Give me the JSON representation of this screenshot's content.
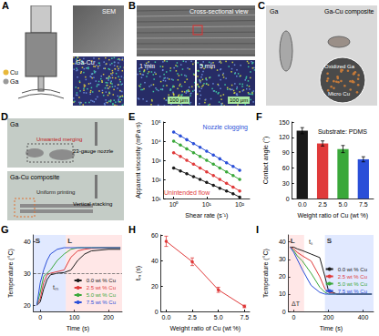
{
  "photo_panels": [
    {
      "letter": "A",
      "legend": [
        {
          "label": "Cu",
          "color": "#e8b83a"
        },
        {
          "label": "Ga",
          "color": "#9a9a9a"
        }
      ],
      "sem_label": "SEM",
      "eds_label": "Ga-Cu"
    },
    {
      "letter": "B",
      "main_label": "Cross-sectional view",
      "insets": [
        {
          "label": "1 min",
          "scale_bar": "100 μm"
        },
        {
          "label": "5 min",
          "scale_bar": "100 μm"
        }
      ]
    },
    {
      "letter": "C",
      "left_label": "Ga",
      "right_label": "Ga-Cu composite",
      "inset_labels": [
        "Oxidized Ga",
        "Micro Cu"
      ]
    },
    {
      "letter": "D",
      "rows": [
        {
          "label": "Ga",
          "notes": [
            "23-gauge nozzle",
            "Unwanted merging"
          ]
        },
        {
          "label": "Ga-Cu composite",
          "notes": [
            "Vertical stacking",
            "Uniform printing"
          ]
        }
      ]
    }
  ],
  "chart_data": [
    {
      "panel": "E",
      "type": "line",
      "log": true,
      "x_label": "Shear rate (s⁻¹)",
      "y_label": "Apparent viscosity (mPa·s)",
      "annotations": [
        "Nozzle clogging",
        "Unintended flow"
      ],
      "xlim": [
        0.5,
        200
      ],
      "xticks": [
        {
          "value": 1,
          "label": "10⁰"
        },
        {
          "value": 10,
          "label": "10¹"
        },
        {
          "value": 100,
          "label": "10²"
        }
      ],
      "ylim": [
        10,
        100000
      ],
      "yticks": [
        {
          "value": 10,
          "label": "10¹"
        },
        {
          "value": 100,
          "label": "10²"
        },
        {
          "value": 1000,
          "label": "10³"
        },
        {
          "value": 10000,
          "label": "10⁴"
        },
        {
          "value": 100000,
          "label": "10⁵"
        }
      ],
      "x": [
        1,
        1.6,
        2.5,
        4,
        6.3,
        10,
        16,
        25,
        40,
        63,
        100
      ],
      "series": [
        {
          "color": "#1a1a1a",
          "marker": "circle",
          "line_style": "solid",
          "values": [
            400,
            280,
            200,
            140,
            100,
            70,
            50,
            35,
            25,
            18,
            12
          ]
        },
        {
          "color": "#e03a3a",
          "marker": "circle",
          "line_style": "solid",
          "values": [
            2500,
            1600,
            1000,
            630,
            400,
            250,
            160,
            100,
            63,
            40,
            25
          ]
        },
        {
          "color": "#3aa83a",
          "marker": "circle",
          "line_style": "solid",
          "values": [
            10000,
            6300,
            4000,
            2500,
            1600,
            1000,
            630,
            400,
            250,
            160,
            100
          ]
        },
        {
          "color": "#2a4fd8",
          "marker": "circle",
          "line_style": "solid",
          "values": [
            30000,
            19000,
            12000,
            7500,
            4800,
            3000,
            1900,
            1200,
            750,
            480,
            300
          ]
        }
      ],
      "grid": false
    },
    {
      "panel": "F",
      "type": "bar",
      "title": "Substrate: PDMS",
      "x_label": "Weight ratio of Cu (wt %)",
      "y_label": "Contact angle (°)",
      "categories": [
        "0.0",
        "2.5",
        "5.0",
        "7.5"
      ],
      "values": [
        133,
        108,
        97,
        77
      ],
      "errors": [
        6,
        5,
        7,
        5
      ],
      "colors": [
        "#1a1a1a",
        "#e03a3a",
        "#3aa83a",
        "#2a4fd8"
      ],
      "ylim": [
        0,
        150
      ],
      "yticks": [
        0,
        30,
        60,
        90,
        120,
        150
      ],
      "grid": false
    },
    {
      "panel": "G",
      "type": "line",
      "x_label": "Time (s)",
      "y_label": "Temperature (°C)",
      "annotations": [
        "tₘ"
      ],
      "regions": [
        {
          "label": "S",
          "from": -20,
          "to": 75,
          "color": "#9ab6ff"
        },
        {
          "label": "L",
          "from": 75,
          "to": 240,
          "color": "#ffb0b0"
        }
      ],
      "reference_line": 30,
      "xlim": [
        -20,
        240
      ],
      "xticks": [
        0,
        100,
        200
      ],
      "ylim": [
        18,
        42
      ],
      "yticks": [
        20,
        30,
        40
      ],
      "x": [
        -10,
        0,
        10,
        20,
        30,
        50,
        70,
        90,
        110,
        130,
        150,
        200,
        235
      ],
      "series": [
        {
          "name": "0.0 wt % Cu",
          "color": "#1a1a1a",
          "line_style": "solid",
          "values": [
            20,
            21,
            25,
            28,
            29.5,
            30,
            30.2,
            31,
            34,
            36,
            37,
            37.5,
            37.5
          ]
        },
        {
          "name": "2.5 wt % Cu",
          "color": "#e03a3a",
          "line_style": "solid",
          "values": [
            20,
            22,
            27,
            29.5,
            30,
            30.5,
            31,
            35,
            37,
            37.5,
            37.8,
            38,
            38
          ]
        },
        {
          "name": "5.0 wt % Cu",
          "color": "#3aa83a",
          "line_style": "solid",
          "values": [
            20,
            24,
            29,
            30,
            31,
            34,
            36,
            37.5,
            38,
            38,
            38,
            38,
            38
          ]
        },
        {
          "name": "7.5 wt % Cu",
          "color": "#2a4fd8",
          "line_style": "solid",
          "values": [
            20,
            27,
            31,
            34,
            36,
            37.5,
            38,
            38,
            38,
            38,
            38,
            38,
            38
          ]
        }
      ],
      "legend": "lower right",
      "grid": false
    },
    {
      "panel": "H",
      "type": "line",
      "x_label": "Weight ratio of Cu (wt %)",
      "y_label": "tₘ (s)",
      "xlim": [
        -0.5,
        8
      ],
      "xticks": [
        {
          "value": 0,
          "label": "0.0"
        },
        {
          "value": 2.5,
          "label": "2.5"
        },
        {
          "value": 5,
          "label": "5.0"
        },
        {
          "value": 7.5,
          "label": "7.5"
        }
      ],
      "ylim": [
        0,
        60
      ],
      "yticks": [
        0,
        20,
        40,
        60
      ],
      "x": [
        0,
        2.5,
        5,
        7.5
      ],
      "values": [
        55,
        39,
        17,
        4
      ],
      "errors": [
        4,
        3,
        2,
        1
      ],
      "color": "#e03a3a",
      "marker": "circle",
      "line_style": "solid",
      "grid": false
    },
    {
      "panel": "I",
      "type": "line",
      "x_label": "Time (s)",
      "y_label": "Temperature (°C)",
      "annotations": [
        "tₛ",
        "ΔT"
      ],
      "regions": [
        {
          "label": "L",
          "from": -30,
          "to": 60,
          "color": "#ffb0b0"
        },
        {
          "label": "S",
          "from": 180,
          "to": 460,
          "color": "#9ab6ff"
        }
      ],
      "xlim": [
        -30,
        460
      ],
      "xticks": [
        0,
        200,
        400
      ],
      "ylim": [
        0,
        44
      ],
      "yticks": [
        0,
        10,
        20,
        30,
        40
      ],
      "x": [
        -20,
        0,
        20,
        50,
        100,
        150,
        180,
        200,
        250,
        300,
        400,
        450
      ],
      "series": [
        {
          "name": "0.0 wt % Cu",
          "color": "#1a1a1a",
          "line_style": "solid",
          "values": [
            37,
            37,
            36,
            35,
            33,
            31,
            20,
            12,
            10,
            10,
            10,
            10
          ]
        },
        {
          "name": "2.5 wt % Cu",
          "color": "#e03a3a",
          "line_style": "solid",
          "values": [
            37,
            36,
            34,
            32,
            29,
            20,
            13,
            11,
            10,
            10,
            10,
            10
          ]
        },
        {
          "name": "5.0 wt % Cu",
          "color": "#3aa83a",
          "line_style": "solid",
          "values": [
            37,
            35,
            32,
            29,
            22,
            14,
            11,
            10,
            10,
            10,
            10,
            10
          ]
        },
        {
          "name": "7.5 wt % Cu",
          "color": "#2a4fd8",
          "line_style": "solid",
          "values": [
            37,
            34,
            30,
            24,
            15,
            11,
            10,
            10,
            10,
            10,
            10,
            10
          ]
        }
      ],
      "legend": "center right",
      "grid": false
    }
  ]
}
